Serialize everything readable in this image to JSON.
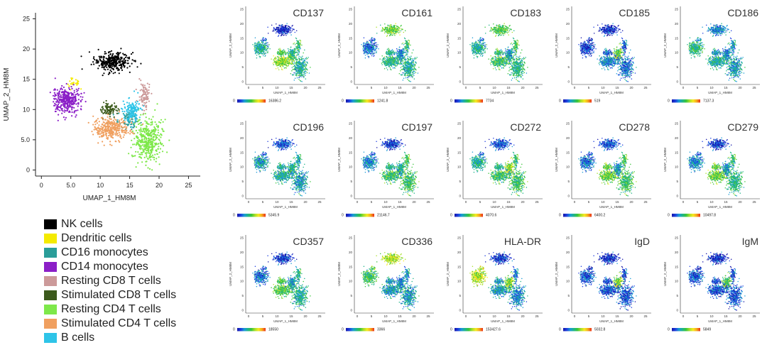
{
  "colors": {
    "scale": [
      "#1515a8",
      "#1d3fe0",
      "#1a9bd6",
      "#1fb489",
      "#39c53a",
      "#a9df2a",
      "#f6ea23",
      "#f7a51d",
      "#ea2f17"
    ],
    "axis": "#222222"
  },
  "chart_data": [
    {
      "type": "scatter",
      "title": "",
      "xlabel": "UMAP_1_HM8M",
      "ylabel": "UMAP_2_HM8M",
      "xlim": [
        -1,
        27
      ],
      "ylim": [
        -1,
        26
      ],
      "xticks": [
        "0",
        "5.0",
        "10",
        "15",
        "20",
        "25"
      ],
      "xtick_values": [
        0,
        5,
        10,
        15,
        20,
        25
      ],
      "yticks": [
        "0",
        "5.0",
        "10",
        "15",
        "20",
        "25"
      ],
      "ytick_values": [
        0,
        5,
        10,
        15,
        20,
        25
      ],
      "clusters": [
        {
          "name": "NK cells",
          "color": "#000000",
          "cx": 12.0,
          "cy": 17.9,
          "sx": 2.0,
          "sy": 1.05,
          "n": 320
        },
        {
          "name": "Dendritic cells",
          "color": "#f4ea00",
          "cx": 5.4,
          "cy": 14.4,
          "sx": 1.0,
          "sy": 0.5,
          "n": 25
        },
        {
          "name": "CD16 monocytes",
          "color": "#2a9d99",
          "cx": 14.8,
          "cy": 8.4,
          "sx": 1.2,
          "sy": 1.0,
          "n": 90
        },
        {
          "name": "CD14 monocytes",
          "color": "#8b1fc7",
          "cx": 4.2,
          "cy": 11.6,
          "sx": 1.6,
          "sy": 1.35,
          "n": 360
        },
        {
          "name": "Resting CD8 T cells",
          "color": "#cc9a9a",
          "cx": 17.6,
          "cy": 12.3,
          "sx": 0.6,
          "sy": 1.5,
          "n": 90
        },
        {
          "name": "Stimulated CD8 T cells",
          "color": "#3c5a1c",
          "cx": 11.5,
          "cy": 10.0,
          "sx": 1.1,
          "sy": 0.7,
          "n": 90
        },
        {
          "name": "Resting CD4 T cells",
          "color": "#7ee84a",
          "cx": 18.2,
          "cy": 4.8,
          "sx": 1.5,
          "sy": 2.4,
          "n": 420
        },
        {
          "name": "Stimulated CD4 T cells",
          "color": "#f0a060",
          "cx": 11.8,
          "cy": 6.8,
          "sx": 1.9,
          "sy": 1.3,
          "n": 330
        },
        {
          "name": "B cells",
          "color": "#2ec4e8",
          "cx": 15.5,
          "cy": 9.8,
          "sx": 1.0,
          "sy": 1.2,
          "n": 140
        }
      ]
    },
    {
      "type": "scatter",
      "title": "CD137",
      "scale_min": "0",
      "scale_max": "16386.2",
      "xlabel": "UMAP_1_HM8M",
      "ylabel": "UMAP_2_HM8M",
      "xticks": [
        "0",
        "5",
        "10",
        "15",
        "20",
        "25"
      ],
      "yticks": [
        "0",
        "5",
        "10",
        "15",
        "20",
        "25"
      ],
      "cluster_expression": [
        0.05,
        0.2,
        0.55,
        0.35,
        0.45,
        0.5,
        0.35,
        0.6,
        0.4
      ]
    },
    {
      "type": "scatter",
      "title": "CD161",
      "scale_min": "0",
      "scale_max": "1241.8",
      "xlabel": "UMAP_1_HM8M",
      "ylabel": "UMAP_2_HM8M",
      "xticks": [
        "0",
        "5",
        "10",
        "15",
        "20",
        "25"
      ],
      "yticks": [
        "0",
        "5",
        "10",
        "15",
        "20",
        "25"
      ],
      "cluster_expression": [
        0.55,
        0.2,
        0.3,
        0.2,
        0.45,
        0.4,
        0.35,
        0.4,
        0.25
      ]
    },
    {
      "type": "scatter",
      "title": "CD183",
      "scale_min": "0",
      "scale_max": "7734",
      "xlabel": "UMAP_1_HM8M",
      "ylabel": "UMAP_2_HM8M",
      "xticks": [
        "0",
        "5",
        "10",
        "15",
        "20",
        "25"
      ],
      "yticks": [
        "0",
        "5",
        "10",
        "15",
        "20",
        "25"
      ],
      "cluster_expression": [
        0.5,
        0.25,
        0.3,
        0.35,
        0.5,
        0.45,
        0.4,
        0.45,
        0.3
      ]
    },
    {
      "type": "scatter",
      "title": "CD185",
      "scale_min": "0",
      "scale_max": "519",
      "xlabel": "UMAP_1_HM8M",
      "ylabel": "UMAP_2_HM8M",
      "xticks": [
        "0",
        "5",
        "10",
        "15",
        "20",
        "25"
      ],
      "yticks": [
        "0",
        "5",
        "10",
        "15",
        "20",
        "25"
      ],
      "cluster_expression": [
        0.08,
        0.1,
        0.15,
        0.1,
        0.2,
        0.2,
        0.2,
        0.25,
        0.55
      ]
    },
    {
      "type": "scatter",
      "title": "CD186",
      "scale_min": "0",
      "scale_max": "7137.3",
      "xlabel": "UMAP_1_HM8M",
      "ylabel": "UMAP_2_HM8M",
      "xticks": [
        "0",
        "5",
        "10",
        "15",
        "20",
        "25"
      ],
      "yticks": [
        "0",
        "5",
        "10",
        "15",
        "20",
        "25"
      ],
      "cluster_expression": [
        0.25,
        0.3,
        0.3,
        0.4,
        0.3,
        0.3,
        0.3,
        0.35,
        0.25
      ]
    },
    {
      "type": "scatter",
      "title": "CD196",
      "scale_min": "0",
      "scale_max": "5345.9",
      "xlabel": "UMAP_1_HM8M",
      "ylabel": "UMAP_2_HM8M",
      "xticks": [
        "0",
        "5",
        "10",
        "15",
        "20",
        "25"
      ],
      "yticks": [
        "0",
        "5",
        "10",
        "15",
        "20",
        "25"
      ],
      "cluster_expression": [
        0.15,
        0.2,
        0.25,
        0.3,
        0.35,
        0.35,
        0.3,
        0.35,
        0.4
      ]
    },
    {
      "type": "scatter",
      "title": "CD197",
      "scale_min": "0",
      "scale_max": "21146.7",
      "xlabel": "UMAP_1_HM8M",
      "ylabel": "UMAP_2_HM8M",
      "xticks": [
        "0",
        "5",
        "10",
        "15",
        "20",
        "25"
      ],
      "yticks": [
        "0",
        "5",
        "10",
        "15",
        "20",
        "25"
      ],
      "cluster_expression": [
        0.1,
        0.2,
        0.25,
        0.25,
        0.5,
        0.4,
        0.45,
        0.45,
        0.4
      ]
    },
    {
      "type": "scatter",
      "title": "CD272",
      "scale_min": "0",
      "scale_max": "4070.6",
      "xlabel": "UMAP_1_HM8M",
      "ylabel": "UMAP_2_HM8M",
      "xticks": [
        "0",
        "5",
        "10",
        "15",
        "20",
        "25"
      ],
      "yticks": [
        "0",
        "5",
        "10",
        "15",
        "20",
        "25"
      ],
      "cluster_expression": [
        0.15,
        0.2,
        0.3,
        0.35,
        0.45,
        0.4,
        0.45,
        0.45,
        0.62
      ]
    },
    {
      "type": "scatter",
      "title": "CD278",
      "scale_min": "0",
      "scale_max": "6400.2",
      "xlabel": "UMAP_1_HM8M",
      "ylabel": "UMAP_2_HM8M",
      "xticks": [
        "0",
        "5",
        "10",
        "15",
        "20",
        "25"
      ],
      "yticks": [
        "0",
        "5",
        "10",
        "15",
        "20",
        "25"
      ],
      "cluster_expression": [
        0.15,
        0.2,
        0.25,
        0.2,
        0.5,
        0.55,
        0.45,
        0.55,
        0.3
      ]
    },
    {
      "type": "scatter",
      "title": "CD279",
      "scale_min": "0",
      "scale_max": "10497.8",
      "xlabel": "UMAP_1_HM8M",
      "ylabel": "UMAP_2_HM8M",
      "xticks": [
        "0",
        "5",
        "10",
        "15",
        "20",
        "25"
      ],
      "yticks": [
        "0",
        "5",
        "10",
        "15",
        "20",
        "25"
      ],
      "cluster_expression": [
        0.1,
        0.2,
        0.25,
        0.25,
        0.45,
        0.55,
        0.4,
        0.55,
        0.3
      ]
    },
    {
      "type": "scatter",
      "title": "CD357",
      "scale_min": "0",
      "scale_max": "18550",
      "xlabel": "UMAP_1_HM8M",
      "ylabel": "UMAP_2_HM8M",
      "xticks": [
        "0",
        "5",
        "10",
        "15",
        "20",
        "25"
      ],
      "yticks": [
        "0",
        "5",
        "10",
        "15",
        "20",
        "25"
      ],
      "cluster_expression": [
        0.1,
        0.2,
        0.3,
        0.2,
        0.4,
        0.5,
        0.35,
        0.5,
        0.3
      ]
    },
    {
      "type": "scatter",
      "title": "CD336",
      "scale_min": "0",
      "scale_max": "3366",
      "xlabel": "UMAP_1_HM8M",
      "ylabel": "UMAP_2_HM8M",
      "xticks": [
        "0",
        "5",
        "10",
        "15",
        "20",
        "25"
      ],
      "yticks": [
        "0",
        "5",
        "10",
        "15",
        "20",
        "25"
      ],
      "cluster_expression": [
        0.65,
        0.55,
        0.3,
        0.45,
        0.3,
        0.3,
        0.3,
        0.3,
        0.25
      ]
    },
    {
      "type": "scatter",
      "title": "HLA-DR",
      "scale_min": "0",
      "scale_max": "153427.6",
      "xlabel": "UMAP_1_HM8M",
      "ylabel": "UMAP_2_HM8M",
      "xticks": [
        "0",
        "5",
        "10",
        "15",
        "20",
        "25"
      ],
      "yticks": [
        "0",
        "5",
        "10",
        "15",
        "20",
        "25"
      ],
      "cluster_expression": [
        0.1,
        0.7,
        0.45,
        0.65,
        0.25,
        0.3,
        0.25,
        0.3,
        0.6
      ]
    },
    {
      "type": "scatter",
      "title": "IgD",
      "scale_min": "0",
      "scale_max": "5032.8",
      "xlabel": "UMAP_1_HM8M",
      "ylabel": "UMAP_2_HM8M",
      "xticks": [
        "0",
        "5",
        "10",
        "15",
        "20",
        "25"
      ],
      "yticks": [
        "0",
        "5",
        "10",
        "15",
        "20",
        "25"
      ],
      "cluster_expression": [
        0.08,
        0.1,
        0.15,
        0.15,
        0.15,
        0.15,
        0.15,
        0.15,
        0.6
      ]
    },
    {
      "type": "scatter",
      "title": "IgM",
      "scale_min": "0",
      "scale_max": "5849",
      "xlabel": "UMAP_1_HM8M",
      "ylabel": "UMAP_2_HM8M",
      "xticks": [
        "0",
        "5",
        "10",
        "15",
        "20",
        "25"
      ],
      "yticks": [
        "0",
        "5",
        "10",
        "15",
        "20",
        "25"
      ],
      "cluster_expression": [
        0.08,
        0.1,
        0.15,
        0.15,
        0.15,
        0.15,
        0.15,
        0.15,
        0.5
      ]
    }
  ]
}
